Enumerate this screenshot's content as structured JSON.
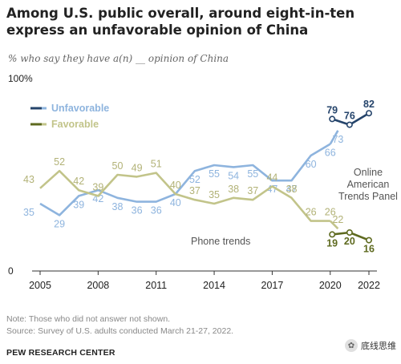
{
  "header": {
    "title": "Among U.S. public overall, around eight-in-ten express an unfavorable opinion of China",
    "subtitle": "% who say they have a(n) __ opinion of China"
  },
  "footer": {
    "note": "Note: Those who did not answer not shown.",
    "source": "Source: Survey of U.S. adults conducted March 21-27, 2022.",
    "org": "PEW RESEARCH CENTER"
  },
  "watermark": {
    "text": "底线思维",
    "icon": "wechat-logo-icon"
  },
  "chart_data": {
    "type": "line",
    "x_ticks": [
      2005,
      2008,
      2011,
      2014,
      2017,
      2020,
      2022
    ],
    "ylim": [
      0,
      100
    ],
    "y_ticks": [
      {
        "value": 0,
        "label": "0"
      },
      {
        "value": 100,
        "label": "100%"
      }
    ],
    "grid": false,
    "legend": [
      {
        "label": "Unfavorable",
        "color": "#8eb4de"
      },
      {
        "label": "Favorable",
        "color": "#c2c48a"
      }
    ],
    "colors": {
      "unfav_phone": "#8eb4de",
      "fav_phone": "#c2c48a",
      "unfav_online": "#25446b",
      "fav_online": "#5e6a1f",
      "phone_unfav_label": "#8eb4de",
      "phone_fav_label": "#b2b277"
    },
    "annotations": [
      {
        "text": "Phone trends"
      },
      {
        "text": "Online\nAmerican\nTrends Panel"
      }
    ],
    "series": [
      {
        "id": "unfav_phone",
        "label_side": "below",
        "x": [
          2005,
          2006,
          2007,
          2008,
          2009,
          2010,
          2011,
          2012,
          2013,
          2014,
          2015,
          2016,
          2017,
          2018,
          2019,
          2020
        ],
        "y": [
          35,
          29,
          39,
          42,
          38,
          36,
          36,
          40,
          52,
          55,
          54,
          55,
          47,
          47,
          60,
          66
        ]
      },
      {
        "id": "unfav_phone_2020",
        "label_side": "below",
        "x": [
          2020,
          2020.4
        ],
        "y": [
          66,
          73
        ]
      },
      {
        "id": "fav_phone",
        "label_side": "above",
        "x": [
          2005,
          2006,
          2007,
          2008,
          2009,
          2010,
          2011,
          2012,
          2013,
          2014,
          2015,
          2016,
          2017,
          2018,
          2019,
          2020
        ],
        "y": [
          43,
          52,
          42,
          39,
          50,
          49,
          51,
          40,
          37,
          35,
          38,
          37,
          44,
          38,
          26,
          26
        ]
      },
      {
        "id": "fav_phone_2020",
        "label_side": "above",
        "x": [
          2020,
          2020.4
        ],
        "y": [
          26,
          22
        ]
      },
      {
        "id": "unfav_online",
        "label_side": "above",
        "x": [
          2020.1,
          2021,
          2022
        ],
        "y": [
          79,
          76,
          82
        ]
      },
      {
        "id": "fav_online",
        "label_side": "below",
        "x": [
          2020.1,
          2021,
          2022
        ],
        "y": [
          19,
          20,
          16
        ]
      }
    ]
  }
}
